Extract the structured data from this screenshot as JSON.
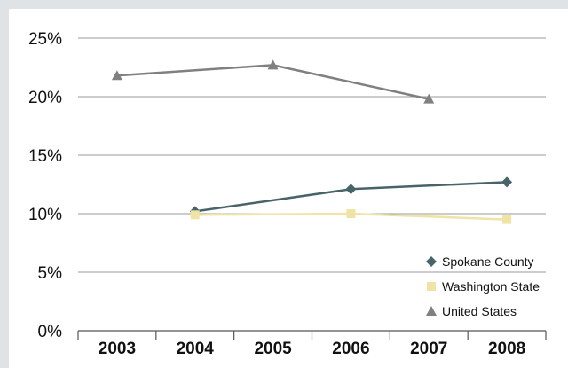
{
  "chart_data": {
    "type": "line",
    "categories": [
      "2003",
      "2004",
      "2005",
      "2006",
      "2007",
      "2008"
    ],
    "y_ticks": [
      "0%",
      "5%",
      "10%",
      "15%",
      "20%",
      "25%"
    ],
    "ylim": [
      0,
      25
    ],
    "grid": true,
    "legend_position": "bottom-right",
    "series": [
      {
        "name": "Spokane County",
        "color": "#476469",
        "marker": "diamond",
        "values": [
          null,
          10.2,
          null,
          12.1,
          null,
          12.7
        ]
      },
      {
        "name": "Washington State",
        "color": "#f0e3a6",
        "marker": "square",
        "values": [
          null,
          9.9,
          null,
          10.0,
          null,
          9.5
        ]
      },
      {
        "name": "United States",
        "color": "#808080",
        "marker": "triangle",
        "values": [
          21.8,
          null,
          22.7,
          null,
          19.8,
          null
        ]
      }
    ]
  }
}
